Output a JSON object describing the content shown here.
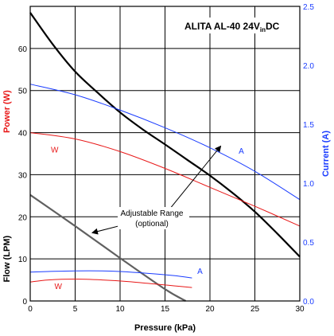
{
  "chart_data": {
    "type": "line",
    "title": "ALITA AL-40 24V",
    "title_subscript": "in",
    "title_suffix": "DC",
    "xlabel": "Pressure (kPa)",
    "ylabel_left_flow": "Flow (LPM)",
    "ylabel_left_power": "Power (W)",
    "ylabel_right": "Current (A)",
    "xlim": [
      0,
      30
    ],
    "ylim_left": [
      0,
      70
    ],
    "ylim_right": [
      0,
      2.5
    ],
    "x_ticks": [
      "0",
      "5",
      "10",
      "15",
      "20",
      "25",
      "30"
    ],
    "y_left_ticks": [
      "0",
      "10",
      "20",
      "30",
      "40",
      "50",
      "60"
    ],
    "y_right_ticks": [
      "0.0",
      "0.5",
      "1.0",
      "1.5",
      "2.0",
      "2.5"
    ],
    "grid": true,
    "colors": {
      "flow": "#000000",
      "flow_adjustable": "#606060",
      "power": "#e81818",
      "current": "#1a3cff",
      "grid": "#000000"
    },
    "annotation": {
      "text_line1": "Adjustable Range",
      "text_line2": "(optional)"
    },
    "series": [
      {
        "key": "flow_main",
        "axis": "left",
        "color": "#000000",
        "width": 2.2,
        "x": [
          0,
          2.5,
          5,
          7.5,
          10,
          12.5,
          15,
          17.5,
          20,
          22.5,
          25,
          27.5,
          30
        ],
        "y": [
          68.5,
          61,
          54.5,
          49.5,
          44.8,
          40.8,
          37.2,
          33.5,
          29.8,
          25.7,
          21.2,
          16,
          10.5
        ]
      },
      {
        "key": "flow_adjustable",
        "axis": "left",
        "color": "#606060",
        "width": 2.2,
        "x": [
          0,
          5,
          10,
          15,
          17.3
        ],
        "y": [
          25.2,
          17.8,
          10.2,
          2.8,
          0
        ]
      },
      {
        "key": "current_high",
        "axis": "right",
        "label": "A",
        "color": "#1a3cff",
        "width": 1,
        "x": [
          0,
          5,
          10,
          15,
          20,
          25,
          30
        ],
        "y": [
          1.84,
          1.75,
          1.62,
          1.47,
          1.3,
          1.1,
          0.86
        ]
      },
      {
        "key": "power_high",
        "axis": "left",
        "label": "W",
        "color": "#e81818",
        "width": 1,
        "x": [
          0,
          5,
          10,
          15,
          20,
          25,
          30
        ],
        "y": [
          40,
          38.5,
          35.5,
          31.5,
          27,
          22.5,
          17.8
        ]
      },
      {
        "key": "current_low",
        "axis": "right",
        "label": "A",
        "color": "#1a3cff",
        "width": 1,
        "x": [
          0,
          2,
          5,
          8,
          10,
          13,
          16,
          18
        ],
        "y": [
          0.245,
          0.25,
          0.255,
          0.255,
          0.25,
          0.235,
          0.215,
          0.195
        ]
      },
      {
        "key": "power_low",
        "axis": "left",
        "label": "W",
        "color": "#e81818",
        "width": 1,
        "x": [
          0,
          2,
          5,
          8,
          11,
          14,
          16,
          18
        ],
        "y": [
          4.5,
          5,
          5.2,
          5,
          4.6,
          4,
          3.6,
          3.2
        ]
      }
    ]
  }
}
